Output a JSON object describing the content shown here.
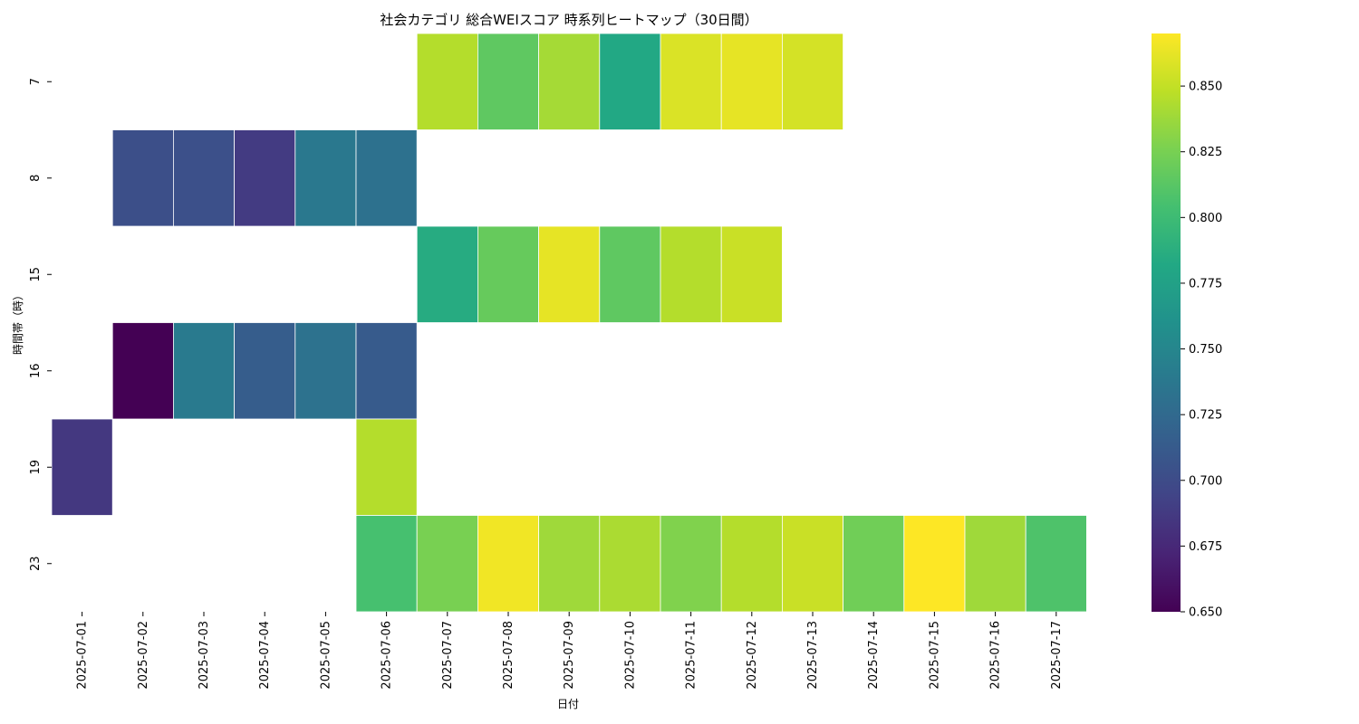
{
  "chart_data": {
    "type": "heatmap",
    "title": "社会カテゴリ 総合WEIスコア 時系列ヒートマップ（30日間）",
    "xlabel": "日付",
    "ylabel": "時間帯（時）",
    "x": [
      "2025-07-01",
      "2025-07-02",
      "2025-07-03",
      "2025-07-04",
      "2025-07-05",
      "2025-07-06",
      "2025-07-07",
      "2025-07-08",
      "2025-07-09",
      "2025-07-10",
      "2025-07-11",
      "2025-07-12",
      "2025-07-13",
      "2025-07-14",
      "2025-07-15",
      "2025-07-16",
      "2025-07-17"
    ],
    "y": [
      "7",
      "8",
      "15",
      "16",
      "19",
      "23"
    ],
    "values": [
      [
        null,
        null,
        null,
        null,
        null,
        null,
        0.845,
        0.815,
        0.84,
        0.782,
        0.858,
        0.862,
        0.856,
        null,
        null,
        null,
        null
      ],
      [
        null,
        0.703,
        0.704,
        0.688,
        0.738,
        0.732,
        null,
        null,
        null,
        null,
        null,
        null,
        null,
        null,
        null,
        null,
        null
      ],
      [
        null,
        null,
        null,
        null,
        null,
        null,
        0.785,
        0.818,
        0.862,
        0.815,
        0.845,
        0.852,
        null,
        null,
        null,
        null,
        null
      ],
      [
        null,
        0.65,
        0.74,
        0.714,
        0.733,
        0.713,
        null,
        null,
        null,
        null,
        null,
        null,
        null,
        null,
        null,
        null,
        null
      ],
      [
        0.686,
        null,
        null,
        null,
        null,
        0.845,
        null,
        null,
        null,
        null,
        null,
        null,
        null,
        null,
        null,
        null,
        null
      ],
      [
        null,
        null,
        null,
        null,
        null,
        0.805,
        0.825,
        0.866,
        0.838,
        0.842,
        0.828,
        0.845,
        0.852,
        0.822,
        0.87,
        0.838,
        0.808
      ]
    ],
    "colorbar": {
      "colormap": "viridis",
      "range": [
        0.65,
        0.87
      ],
      "ticks": [
        "0.650",
        "0.675",
        "0.700",
        "0.725",
        "0.750",
        "0.775",
        "0.800",
        "0.825",
        "0.850"
      ]
    },
    "grid": false,
    "legend": "colorbar-right"
  }
}
